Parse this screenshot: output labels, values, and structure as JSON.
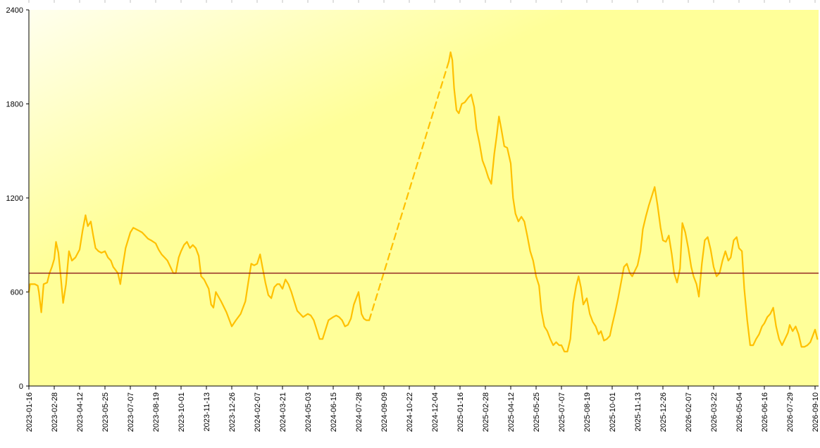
{
  "chart_data": {
    "type": "line",
    "title": "",
    "xlabel": "",
    "ylabel": "",
    "ylim": [
      0,
      2400
    ],
    "yticks": [
      0,
      600,
      1200,
      1800,
      2400
    ],
    "xticks": [
      "2023-01-16",
      "2023-02-28",
      "2023-04-12",
      "2023-05-25",
      "2023-07-07",
      "2023-08-19",
      "2023-10-01",
      "2023-11-13",
      "2023-12-26",
      "2024-02-07",
      "2024-03-21",
      "2024-05-03",
      "2024-06-15",
      "2024-07-28",
      "2024-09-09",
      "2024-10-22",
      "2024-12-04",
      "2025-01-16",
      "2025-02-28",
      "2025-04-12",
      "2025-05-25",
      "2025-07-07",
      "2025-08-19",
      "2025-10-01",
      "2025-11-13",
      "2025-12-26",
      "2026-02-07",
      "2026-03-22",
      "2026-05-04",
      "2026-06-16",
      "2026-07-29",
      "2026-09-10"
    ],
    "reference_line": {
      "value": 720,
      "color": "#8b1a1a"
    },
    "colors": {
      "line": "#ffc000",
      "reference": "#8b1a1a",
      "bg_light": "#ffffee",
      "bg_dark": "#ffff99"
    },
    "grid": false,
    "legend": "none",
    "series": [
      {
        "style": "solid",
        "points": [
          [
            "2023-01-16",
            600
          ],
          [
            "2023-01-18",
            650
          ],
          [
            "2023-01-26",
            650
          ],
          [
            "2023-01-31",
            640
          ],
          [
            "2023-02-02",
            600
          ],
          [
            "2023-02-06",
            470
          ],
          [
            "2023-02-10",
            650
          ],
          [
            "2023-02-16",
            660
          ],
          [
            "2023-02-20",
            720
          ],
          [
            "2023-02-24",
            760
          ],
          [
            "2023-02-28",
            810
          ],
          [
            "2023-03-03",
            920
          ],
          [
            "2023-03-07",
            850
          ],
          [
            "2023-03-11",
            700
          ],
          [
            "2023-03-15",
            530
          ],
          [
            "2023-03-20",
            650
          ],
          [
            "2023-03-25",
            860
          ],
          [
            "2023-03-30",
            800
          ],
          [
            "2023-04-05",
            820
          ],
          [
            "2023-04-12",
            870
          ],
          [
            "2023-04-17",
            990
          ],
          [
            "2023-04-22",
            1090
          ],
          [
            "2023-04-26",
            1020
          ],
          [
            "2023-05-01",
            1050
          ],
          [
            "2023-05-05",
            960
          ],
          [
            "2023-05-09",
            880
          ],
          [
            "2023-05-14",
            860
          ],
          [
            "2023-05-19",
            850
          ],
          [
            "2023-05-25",
            860
          ],
          [
            "2023-05-30",
            820
          ],
          [
            "2023-06-04",
            800
          ],
          [
            "2023-06-08",
            760
          ],
          [
            "2023-06-12",
            740
          ],
          [
            "2023-06-16",
            720
          ],
          [
            "2023-06-20",
            650
          ],
          [
            "2023-06-24",
            760
          ],
          [
            "2023-06-29",
            880
          ],
          [
            "2023-07-07",
            980
          ],
          [
            "2023-07-12",
            1010
          ],
          [
            "2023-07-17",
            1000
          ],
          [
            "2023-07-22",
            990
          ],
          [
            "2023-07-27",
            980
          ],
          [
            "2023-08-01",
            960
          ],
          [
            "2023-08-06",
            940
          ],
          [
            "2023-08-11",
            930
          ],
          [
            "2023-08-19",
            910
          ],
          [
            "2023-08-24",
            870
          ],
          [
            "2023-08-29",
            840
          ],
          [
            "2023-09-03",
            820
          ],
          [
            "2023-09-08",
            800
          ],
          [
            "2023-09-13",
            760
          ],
          [
            "2023-09-18",
            720
          ],
          [
            "2023-09-22",
            720
          ],
          [
            "2023-09-27",
            820
          ],
          [
            "2023-10-01",
            860
          ],
          [
            "2023-10-06",
            900
          ],
          [
            "2023-10-11",
            920
          ],
          [
            "2023-10-16",
            880
          ],
          [
            "2023-10-21",
            900
          ],
          [
            "2023-10-26",
            880
          ],
          [
            "2023-10-31",
            830
          ],
          [
            "2023-11-04",
            700
          ],
          [
            "2023-11-09",
            680
          ],
          [
            "2023-11-13",
            650
          ],
          [
            "2023-11-17",
            620
          ],
          [
            "2023-11-21",
            520
          ],
          [
            "2023-11-25",
            500
          ],
          [
            "2023-11-29",
            600
          ],
          [
            "2023-12-08",
            540
          ],
          [
            "2023-12-17",
            470
          ],
          [
            "2023-12-26",
            380
          ],
          [
            "2024-01-02",
            420
          ],
          [
            "2024-01-10",
            460
          ],
          [
            "2024-01-18",
            540
          ],
          [
            "2024-01-23",
            660
          ],
          [
            "2024-01-28",
            780
          ],
          [
            "2024-02-02",
            770
          ],
          [
            "2024-02-07",
            780
          ],
          [
            "2024-02-12",
            840
          ],
          [
            "2024-02-16",
            760
          ],
          [
            "2024-02-21",
            660
          ],
          [
            "2024-02-26",
            580
          ],
          [
            "2024-03-02",
            560
          ],
          [
            "2024-03-07",
            630
          ],
          [
            "2024-03-12",
            650
          ],
          [
            "2024-03-16",
            650
          ],
          [
            "2024-03-21",
            620
          ],
          [
            "2024-03-26",
            680
          ],
          [
            "2024-03-31",
            650
          ],
          [
            "2024-04-05",
            600
          ],
          [
            "2024-04-10",
            540
          ],
          [
            "2024-04-15",
            480
          ],
          [
            "2024-04-20",
            460
          ],
          [
            "2024-04-25",
            440
          ],
          [
            "2024-05-03",
            460
          ],
          [
            "2024-05-08",
            450
          ],
          [
            "2024-05-13",
            420
          ],
          [
            "2024-05-18",
            360
          ],
          [
            "2024-05-23",
            300
          ],
          [
            "2024-05-28",
            300
          ],
          [
            "2024-06-02",
            360
          ],
          [
            "2024-06-07",
            420
          ],
          [
            "2024-06-15",
            440
          ],
          [
            "2024-06-20",
            450
          ],
          [
            "2024-06-25",
            440
          ],
          [
            "2024-06-30",
            420
          ],
          [
            "2024-07-05",
            380
          ],
          [
            "2024-07-10",
            390
          ],
          [
            "2024-07-15",
            430
          ],
          [
            "2024-07-20",
            520
          ],
          [
            "2024-07-28",
            600
          ],
          [
            "2024-08-02",
            460
          ],
          [
            "2024-08-06",
            430
          ],
          [
            "2024-08-10",
            420
          ],
          [
            "2024-08-15",
            420
          ]
        ]
      },
      {
        "style": "dashed",
        "points": [
          [
            "2024-08-15",
            420
          ],
          [
            "2024-12-28",
            2070
          ]
        ]
      },
      {
        "style": "solid",
        "points": [
          [
            "2024-12-28",
            2070
          ],
          [
            "2024-12-31",
            2130
          ],
          [
            "2025-01-03",
            2080
          ],
          [
            "2025-01-06",
            1900
          ],
          [
            "2025-01-10",
            1760
          ],
          [
            "2025-01-14",
            1740
          ],
          [
            "2025-01-19",
            1800
          ],
          [
            "2025-01-24",
            1810
          ],
          [
            "2025-01-30",
            1840
          ],
          [
            "2025-02-04",
            1860
          ],
          [
            "2025-02-09",
            1780
          ],
          [
            "2025-02-13",
            1640
          ],
          [
            "2025-02-18",
            1550
          ],
          [
            "2025-02-23",
            1440
          ],
          [
            "2025-02-28",
            1390
          ],
          [
            "2025-03-05",
            1330
          ],
          [
            "2025-03-10",
            1290
          ],
          [
            "2025-03-15",
            1480
          ],
          [
            "2025-03-19",
            1590
          ],
          [
            "2025-03-23",
            1720
          ],
          [
            "2025-03-27",
            1640
          ],
          [
            "2025-04-01",
            1530
          ],
          [
            "2025-04-06",
            1520
          ],
          [
            "2025-04-12",
            1420
          ],
          [
            "2025-04-16",
            1200
          ],
          [
            "2025-04-20",
            1100
          ],
          [
            "2025-04-25",
            1050
          ],
          [
            "2025-04-30",
            1080
          ],
          [
            "2025-05-05",
            1050
          ],
          [
            "2025-05-10",
            960
          ],
          [
            "2025-05-15",
            860
          ],
          [
            "2025-05-20",
            800
          ],
          [
            "2025-05-25",
            700
          ],
          [
            "2025-05-30",
            640
          ],
          [
            "2025-06-03",
            480
          ],
          [
            "2025-06-08",
            380
          ],
          [
            "2025-06-13",
            350
          ],
          [
            "2025-06-18",
            300
          ],
          [
            "2025-06-23",
            260
          ],
          [
            "2025-06-28",
            280
          ],
          [
            "2025-07-03",
            260
          ],
          [
            "2025-07-07",
            260
          ],
          [
            "2025-07-12",
            220
          ],
          [
            "2025-07-17",
            220
          ],
          [
            "2025-07-22",
            300
          ],
          [
            "2025-07-27",
            530
          ],
          [
            "2025-08-01",
            640
          ],
          [
            "2025-08-05",
            700
          ],
          [
            "2025-08-09",
            630
          ],
          [
            "2025-08-13",
            520
          ],
          [
            "2025-08-19",
            560
          ],
          [
            "2025-08-24",
            460
          ],
          [
            "2025-08-29",
            410
          ],
          [
            "2025-09-03",
            380
          ],
          [
            "2025-09-08",
            330
          ],
          [
            "2025-09-12",
            350
          ],
          [
            "2025-09-17",
            290
          ],
          [
            "2025-09-22",
            300
          ],
          [
            "2025-09-27",
            320
          ],
          [
            "2025-10-01",
            390
          ],
          [
            "2025-10-06",
            470
          ],
          [
            "2025-10-11",
            560
          ],
          [
            "2025-10-16",
            660
          ],
          [
            "2025-10-21",
            760
          ],
          [
            "2025-10-26",
            780
          ],
          [
            "2025-10-31",
            720
          ],
          [
            "2025-11-04",
            700
          ],
          [
            "2025-11-09",
            740
          ],
          [
            "2025-11-13",
            770
          ],
          [
            "2025-11-18",
            860
          ],
          [
            "2025-11-22",
            1000
          ],
          [
            "2025-11-27",
            1080
          ],
          [
            "2025-12-02",
            1150
          ],
          [
            "2025-12-07",
            1210
          ],
          [
            "2025-12-12",
            1270
          ],
          [
            "2025-12-17",
            1150
          ],
          [
            "2025-12-22",
            1010
          ],
          [
            "2025-12-26",
            930
          ],
          [
            "2025-12-31",
            920
          ],
          [
            "2026-01-05",
            960
          ],
          [
            "2026-01-10",
            840
          ],
          [
            "2026-01-14",
            720
          ],
          [
            "2026-01-19",
            660
          ],
          [
            "2026-01-24",
            750
          ],
          [
            "2026-01-28",
            1040
          ],
          [
            "2026-02-02",
            980
          ],
          [
            "2026-02-07",
            880
          ],
          [
            "2026-02-12",
            760
          ],
          [
            "2026-02-16",
            700
          ],
          [
            "2026-02-21",
            650
          ],
          [
            "2026-02-25",
            570
          ],
          [
            "2026-03-02",
            780
          ],
          [
            "2026-03-07",
            930
          ],
          [
            "2026-03-12",
            950
          ],
          [
            "2026-03-17",
            870
          ],
          [
            "2026-03-22",
            760
          ],
          [
            "2026-03-27",
            700
          ],
          [
            "2026-04-01",
            720
          ],
          [
            "2026-04-06",
            800
          ],
          [
            "2026-04-11",
            860
          ],
          [
            "2026-04-16",
            800
          ],
          [
            "2026-04-20",
            820
          ],
          [
            "2026-04-25",
            930
          ],
          [
            "2026-04-30",
            950
          ],
          [
            "2026-05-04",
            880
          ],
          [
            "2026-05-09",
            860
          ],
          [
            "2026-05-13",
            620
          ],
          [
            "2026-05-18",
            420
          ],
          [
            "2026-05-23",
            260
          ],
          [
            "2026-05-28",
            260
          ],
          [
            "2026-06-02",
            300
          ],
          [
            "2026-06-07",
            330
          ],
          [
            "2026-06-12",
            380
          ],
          [
            "2026-06-16",
            400
          ],
          [
            "2026-06-21",
            440
          ],
          [
            "2026-06-26",
            460
          ],
          [
            "2026-07-01",
            500
          ],
          [
            "2026-07-06",
            380
          ],
          [
            "2026-07-11",
            300
          ],
          [
            "2026-07-16",
            260
          ],
          [
            "2026-07-21",
            300
          ],
          [
            "2026-07-26",
            340
          ],
          [
            "2026-07-29",
            390
          ],
          [
            "2026-08-03",
            350
          ],
          [
            "2026-08-08",
            380
          ],
          [
            "2026-08-13",
            330
          ],
          [
            "2026-08-18",
            250
          ],
          [
            "2026-08-23",
            250
          ],
          [
            "2026-08-28",
            260
          ],
          [
            "2026-09-02",
            280
          ],
          [
            "2026-09-06",
            320
          ],
          [
            "2026-09-10",
            360
          ],
          [
            "2026-09-14",
            300
          ]
        ]
      }
    ]
  }
}
